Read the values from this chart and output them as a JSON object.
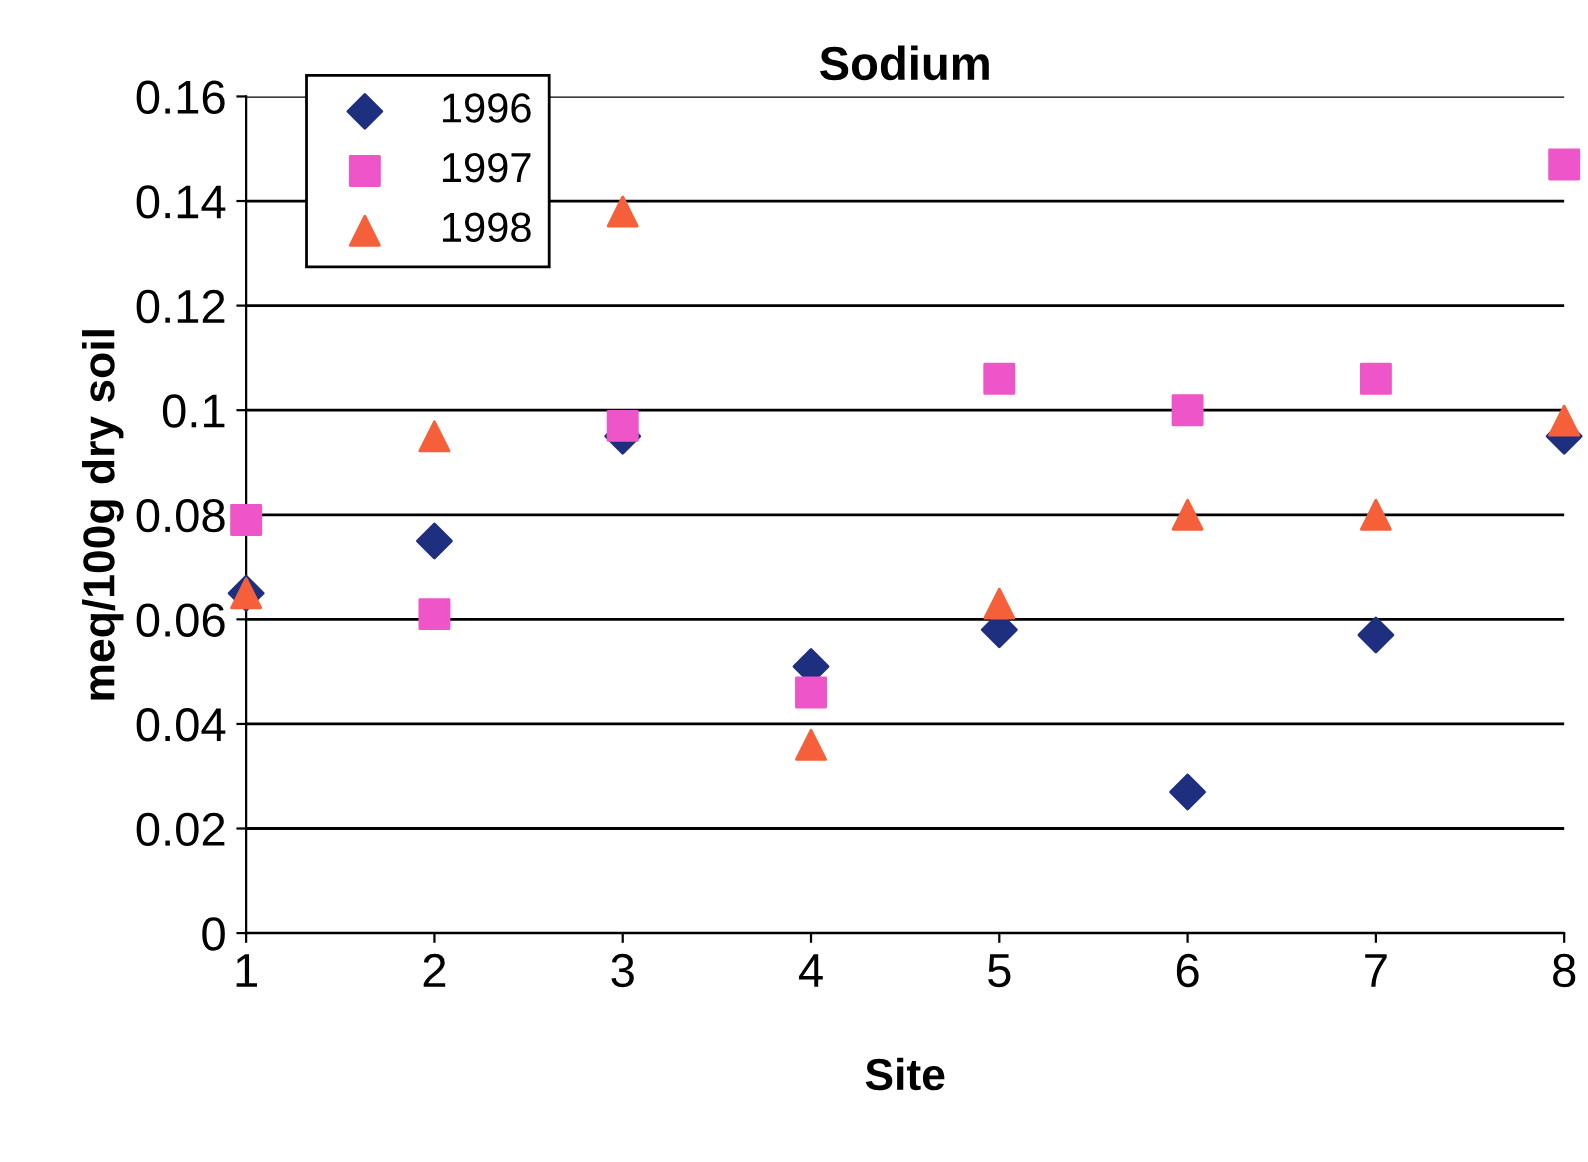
{
  "chart_data": {
    "type": "scatter",
    "title": "Sodium",
    "xlabel": "Site",
    "ylabel": "meq/100g dry soil",
    "x": [
      1,
      2,
      3,
      4,
      5,
      6,
      7,
      8
    ],
    "series": [
      {
        "name": "1996",
        "color": "#1f2f80",
        "marker": "diamond",
        "values": [
          0.065,
          0.075,
          0.095,
          0.051,
          0.058,
          0.027,
          0.057,
          0.095
        ]
      },
      {
        "name": "1997",
        "color": "#ee55c8",
        "marker": "square",
        "values": [
          0.079,
          0.061,
          0.097,
          0.046,
          0.106,
          0.1,
          0.106,
          0.147
        ]
      },
      {
        "name": "1998",
        "color": "#f5603a",
        "marker": "triangle",
        "values": [
          0.065,
          0.095,
          0.138,
          0.036,
          0.063,
          0.08,
          0.08,
          0.098
        ]
      }
    ],
    "xlim": [
      1,
      8
    ],
    "xticks": [
      1,
      2,
      3,
      4,
      5,
      6,
      7,
      8
    ],
    "ylim": [
      0,
      0.16
    ],
    "yticks": [
      {
        "value": 0,
        "label": "0"
      },
      0.02,
      0.04,
      0.06,
      0.08,
      {
        "value": 0.1,
        "label": "0.1"
      },
      0.12,
      0.14,
      0.16
    ],
    "grid": "y",
    "legend": "top left"
  }
}
